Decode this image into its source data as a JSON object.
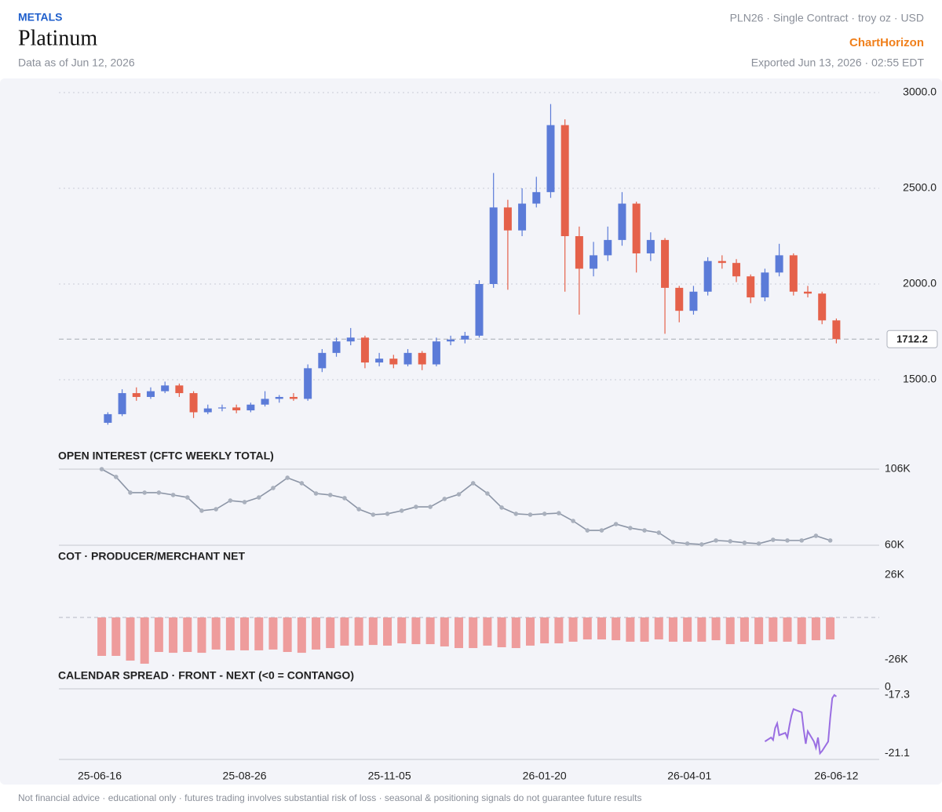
{
  "header": {
    "category": "METALS",
    "title": "Platinum",
    "as_of": "Data as of Jun 12, 2026",
    "contract": "PLN26 · Single Contract · troy oz · USD",
    "brand": "ChartHorizon",
    "exported": "Exported Jun 13, 2026 · 02:55 EDT"
  },
  "footer": "Not financial advice · educational only · futures trading involves substantial risk of loss · seasonal & positioning signals do not guarantee future results",
  "chart_data": [
    {
      "type": "candlestick",
      "x": [
        "25-06-20",
        "25-06-27",
        "25-07-04",
        "25-07-11",
        "25-07-18",
        "25-07-25",
        "25-08-01",
        "25-08-08",
        "25-08-15",
        "25-08-22",
        "25-08-29",
        "25-09-05",
        "25-09-12",
        "25-09-19",
        "25-09-26",
        "25-10-03",
        "25-10-10",
        "25-10-17",
        "25-10-24",
        "25-10-31",
        "25-11-07",
        "25-11-14",
        "25-11-21",
        "25-11-28",
        "25-12-05",
        "25-12-12",
        "25-12-19",
        "25-12-26",
        "26-01-02",
        "26-01-09",
        "26-01-16",
        "26-01-23",
        "26-01-30",
        "26-02-06",
        "26-02-13",
        "26-02-20",
        "26-02-27",
        "26-03-06",
        "26-03-13",
        "26-03-20",
        "26-03-27",
        "26-04-03",
        "26-04-10",
        "26-04-17",
        "26-04-24",
        "26-05-01",
        "26-05-08",
        "26-05-15",
        "26-05-22",
        "26-05-29",
        "26-06-05",
        "26-06-12"
      ],
      "open": [
        1275,
        1320,
        1430,
        1410,
        1440,
        1470,
        1430,
        1330,
        1350,
        1355,
        1340,
        1370,
        1400,
        1410,
        1400,
        1560,
        1640,
        1700,
        1720,
        1590,
        1610,
        1580,
        1640,
        1580,
        1700,
        1710,
        1730,
        2000,
        2400,
        2280,
        2420,
        2480,
        2830,
        2250,
        2080,
        2150,
        2230,
        2420,
        2160,
        2230,
        1980,
        1860,
        1960,
        2120,
        2110,
        2040,
        1930,
        2060,
        2150,
        1960,
        1950,
        1810
      ],
      "high": [
        1330,
        1450,
        1460,
        1460,
        1490,
        1480,
        1440,
        1370,
        1370,
        1370,
        1380,
        1440,
        1420,
        1430,
        1580,
        1660,
        1720,
        1770,
        1730,
        1640,
        1630,
        1660,
        1650,
        1720,
        1730,
        1750,
        2020,
        2580,
        2440,
        2500,
        2560,
        2940,
        2860,
        2300,
        2220,
        2300,
        2480,
        2430,
        2270,
        2240,
        1990,
        1990,
        2140,
        2150,
        2130,
        2050,
        2080,
        2210,
        2160,
        1990,
        1960,
        1820
      ],
      "low": [
        1265,
        1310,
        1390,
        1400,
        1430,
        1410,
        1300,
        1320,
        1335,
        1325,
        1330,
        1360,
        1380,
        1390,
        1390,
        1540,
        1620,
        1680,
        1560,
        1570,
        1560,
        1570,
        1550,
        1570,
        1680,
        1690,
        1720,
        1980,
        1970,
        2250,
        2400,
        2450,
        1960,
        1840,
        2040,
        2120,
        2200,
        2060,
        2120,
        1740,
        1800,
        1840,
        1940,
        2080,
        2010,
        1900,
        1910,
        2040,
        1940,
        1930,
        1790,
        1690
      ],
      "close": [
        1320,
        1430,
        1410,
        1440,
        1470,
        1430,
        1330,
        1350,
        1355,
        1340,
        1370,
        1400,
        1410,
        1400,
        1560,
        1640,
        1700,
        1720,
        1590,
        1610,
        1580,
        1640,
        1580,
        1700,
        1710,
        1730,
        2000,
        2400,
        2280,
        2420,
        2480,
        2830,
        2250,
        2080,
        2150,
        2230,
        2420,
        2160,
        2230,
        1980,
        1860,
        1960,
        2120,
        2110,
        2040,
        1930,
        2060,
        2150,
        1960,
        1950,
        1810,
        1712.2
      ],
      "up_color": "#5b7bd8",
      "down_color": "#e5614a",
      "last_price": 1712.2,
      "xlim": [
        "25-05-27",
        "26-07-03"
      ],
      "ylim": [
        1250,
        3075
      ],
      "yticks": [
        {
          "value": 3000,
          "label": "3000.0"
        },
        {
          "value": 2500,
          "label": "2500.0"
        },
        {
          "value": 2000,
          "label": "2000.0"
        },
        {
          "value": 1500,
          "label": "1500.0"
        }
      ],
      "grid": true
    },
    {
      "type": "line",
      "title": "OPEN INTEREST (CFTC WEEKLY TOTAL)",
      "x": [
        "25-06-17",
        "25-06-24",
        "25-07-01",
        "25-07-08",
        "25-07-15",
        "25-07-22",
        "25-07-29",
        "25-08-05",
        "25-08-12",
        "25-08-19",
        "25-08-26",
        "25-09-02",
        "25-09-09",
        "25-09-16",
        "25-09-23",
        "25-09-30",
        "25-10-07",
        "25-10-14",
        "25-10-21",
        "25-10-28",
        "25-11-04",
        "25-11-11",
        "25-11-18",
        "25-11-25",
        "25-12-02",
        "25-12-09",
        "25-12-16",
        "25-12-23",
        "25-12-30",
        "26-01-06",
        "26-01-13",
        "26-01-20",
        "26-01-27",
        "26-02-03",
        "26-02-10",
        "26-02-17",
        "26-02-24",
        "26-03-03",
        "26-03-10",
        "26-03-17",
        "26-03-24",
        "26-03-31",
        "26-04-07",
        "26-04-14",
        "26-04-21",
        "26-04-28",
        "26-05-05",
        "26-05-12",
        "26-05-19",
        "26-05-26",
        "26-06-02",
        "26-06-09"
      ],
      "values": [
        106000,
        101300,
        91800,
        91800,
        91800,
        90400,
        88900,
        80900,
        81800,
        87000,
        86100,
        88900,
        94600,
        100800,
        97500,
        91300,
        90400,
        88500,
        81800,
        78500,
        79000,
        80900,
        83200,
        83200,
        88000,
        90800,
        97500,
        91300,
        82800,
        79000,
        78500,
        79000,
        79400,
        74700,
        69000,
        69000,
        72800,
        70400,
        69000,
        67600,
        61900,
        61000,
        60500,
        62900,
        62400,
        61500,
        61000,
        63300,
        62900,
        62900,
        65700,
        62900
      ],
      "color": "#8c95a6",
      "markers": true,
      "xlim": [
        "25-05-27",
        "26-07-03"
      ],
      "ylim": [
        60000,
        106000
      ],
      "yticks": [
        {
          "value": 106000,
          "label": "106K"
        },
        {
          "value": 60000,
          "label": "60K"
        }
      ],
      "grid": true
    },
    {
      "type": "bar",
      "title": "COT · PRODUCER/MERCHANT NET",
      "x": [
        "25-06-17",
        "25-06-24",
        "25-07-01",
        "25-07-08",
        "25-07-15",
        "25-07-22",
        "25-07-29",
        "25-08-05",
        "25-08-12",
        "25-08-19",
        "25-08-26",
        "25-09-02",
        "25-09-09",
        "25-09-16",
        "25-09-23",
        "25-09-30",
        "25-10-07",
        "25-10-14",
        "25-10-21",
        "25-10-28",
        "25-11-04",
        "25-11-11",
        "25-11-18",
        "25-11-25",
        "25-12-02",
        "25-12-09",
        "25-12-16",
        "25-12-23",
        "25-12-30",
        "26-01-06",
        "26-01-13",
        "26-01-20",
        "26-01-27",
        "26-02-03",
        "26-02-10",
        "26-02-17",
        "26-02-24",
        "26-03-03",
        "26-03-10",
        "26-03-17",
        "26-03-24",
        "26-03-31",
        "26-04-07",
        "26-04-14",
        "26-04-21",
        "26-04-28",
        "26-05-05",
        "26-05-12",
        "26-05-19",
        "26-05-26",
        "26-06-02",
        "26-06-09"
      ],
      "values": [
        -23600,
        -23600,
        -26500,
        -28400,
        -21200,
        -21700,
        -21200,
        -21700,
        -19700,
        -20200,
        -20200,
        -20200,
        -19700,
        -21200,
        -21700,
        -19700,
        -18800,
        -17300,
        -17300,
        -16900,
        -17300,
        -15900,
        -16400,
        -16400,
        -17800,
        -18800,
        -18800,
        -17300,
        -18300,
        -18800,
        -17300,
        -15900,
        -15900,
        -14900,
        -13500,
        -13500,
        -14000,
        -14900,
        -14900,
        -13500,
        -14900,
        -14900,
        -14900,
        -14000,
        -16400,
        -14900,
        -16400,
        -14900,
        -14900,
        -16400,
        -14000,
        -13500
      ],
      "color": "#ee9c9c",
      "xlim": [
        "25-05-27",
        "26-07-03"
      ],
      "ylim": [
        -34000,
        34000
      ],
      "yticks": [
        {
          "value": 26000,
          "label": "26K"
        },
        {
          "value": -26000,
          "label": "-26K"
        }
      ],
      "zero_line": true,
      "grid": false
    },
    {
      "type": "line",
      "title": "CALENDAR SPREAD · FRONT - NEXT (<0 = CONTANGO)",
      "x": [
        "26-05-08",
        "26-05-11",
        "26-05-12",
        "26-05-13",
        "26-05-14",
        "26-05-15",
        "26-05-18",
        "26-05-19",
        "26-05-20",
        "26-05-21",
        "26-05-22",
        "26-05-26",
        "26-05-27",
        "26-05-28",
        "26-05-29",
        "26-06-01",
        "26-06-02",
        "26-06-03",
        "26-06-04",
        "26-06-05",
        "26-06-08",
        "26-06-09",
        "26-06-10",
        "26-06-11",
        "26-06-12"
      ],
      "values": [
        -20.33,
        -20.07,
        -20.23,
        -19.46,
        -19.15,
        -19.92,
        -19.77,
        -20.07,
        -19.3,
        -18.64,
        -18.22,
        -18.43,
        -19.56,
        -20.48,
        -19.66,
        -20.33,
        -20.74,
        -20.07,
        -21.1,
        -20.95,
        -20.33,
        -18.79,
        -17.51,
        -17.3,
        -17.4
      ],
      "color": "#9a6ee2",
      "markers": false,
      "xlim": [
        "25-05-27",
        "26-07-03"
      ],
      "ylim": [
        -21.5,
        -16.9
      ],
      "yticks": [
        -17.3,
        -21.1
      ],
      "reference_line": 0,
      "xticks": [
        "25-06-16",
        "25-08-26",
        "25-11-05",
        "26-01-20",
        "26-04-01",
        "26-06-12"
      ],
      "grid": false
    }
  ]
}
